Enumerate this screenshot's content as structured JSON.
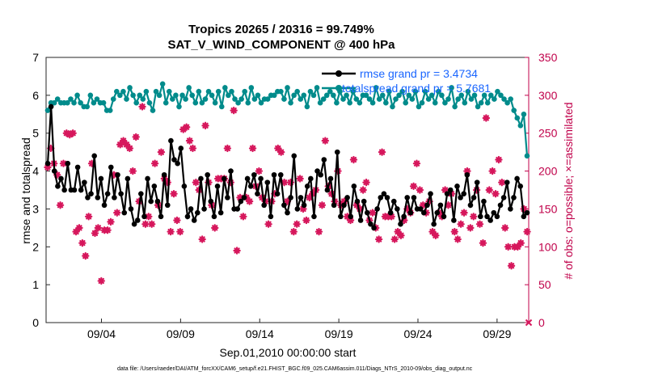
{
  "chart_data": {
    "type": "line",
    "title_line1": "Tropics 20265 / 20316 = 99.749%",
    "title_line2": "SAT_V_WIND_COMPONENT @ 400 hPa",
    "xlabel": "Sep.01,2010 00:00:00 start",
    "ylabel_left": "rmse and totalspread",
    "ylabel_right": "# of obs: o=possible; ×=assimilated",
    "footer": "data file: /Users/raeder/DAI/ATM_forcXX/CAM6_setup/f.e21.FHIST_BGC.f09_025.CAM6assim.011/Diags_NTrS_2010-09/obs_diag_output.nc",
    "xlim": [
      0.5,
      31.0
    ],
    "ylim_left": [
      0,
      7
    ],
    "ylim_right": [
      0,
      350
    ],
    "x_ticks": [
      {
        "value": 4,
        "label": "09/04"
      },
      {
        "value": 9,
        "label": "09/09"
      },
      {
        "value": 14,
        "label": "09/14"
      },
      {
        "value": 19,
        "label": "09/19"
      },
      {
        "value": 24,
        "label": "09/24"
      },
      {
        "value": 29,
        "label": "09/29"
      }
    ],
    "y_ticks_left": [
      "0",
      "1",
      "2",
      "3",
      "4",
      "5",
      "6",
      "7"
    ],
    "y_ticks_right": [
      "0",
      "50",
      "100",
      "150",
      "200",
      "250",
      "300",
      "350"
    ],
    "colors": {
      "rmse": "#000000",
      "spread": "#008b8b",
      "obs": "#d6175c",
      "right_axis": "#c0004a",
      "legend_text": "#1a66ff"
    },
    "series": [
      {
        "name": "rmse",
        "legend": "rmse grand pr = 3.4734",
        "values": [
          4.2,
          5.7,
          4.0,
          3.6,
          3.8,
          3.5,
          4.2,
          3.5,
          3.5,
          4.1,
          3.5,
          3.7,
          3.3,
          3.4,
          4.4,
          3.3,
          3.8,
          3.1,
          3.4,
          4.1,
          3.3,
          3.9,
          3.4,
          2.9,
          3.8,
          3.0,
          2.6,
          2.7,
          3.4,
          2.8,
          3.8,
          3.2,
          3.6,
          3.2,
          2.8,
          3.9,
          3.1,
          4.8,
          4.3,
          4.2,
          4.6,
          3.6,
          2.8,
          3.0,
          2.7,
          2.9,
          3.8,
          3.0,
          3.9,
          3.2,
          2.8,
          3.6,
          2.9,
          3.8,
          3.3,
          4.0,
          3.0,
          3.0,
          3.2,
          3.3,
          3.8,
          3.6,
          3.9,
          3.4,
          3.8,
          3.1,
          3.7,
          2.8,
          3.9,
          3.4,
          3.9,
          3.1,
          2.9,
          3.3,
          4.4,
          3.0,
          3.3,
          3.1,
          3.6,
          3.8,
          2.8,
          4.0,
          3.9,
          4.3,
          3.5,
          3.8,
          3.1,
          4.5,
          2.8,
          3.1,
          3.3,
          2.8,
          3.6,
          3.2,
          2.7,
          3.2,
          2.9,
          2.6,
          2.5,
          3.0,
          3.3,
          3.4,
          3.3,
          2.9,
          3.2,
          3.0,
          2.6,
          2.8,
          3.3,
          2.9,
          3.3,
          3.0,
          3.0,
          2.9,
          3.1,
          3.4,
          2.6,
          2.9,
          3.1,
          2.8,
          3.4,
          3.5,
          2.7,
          3.6,
          3.3,
          3.4,
          3.9,
          3.1,
          3.3,
          3.7,
          2.8,
          3.2,
          2.8,
          2.7,
          2.9,
          2.8,
          3.1,
          3.3,
          3.7,
          3.0,
          3.3,
          3.8,
          3.6,
          2.8,
          2.9
        ]
      },
      {
        "name": "totalspread",
        "legend": "totalspread grand pr = 5.7681",
        "values": [
          5.6,
          5.8,
          5.8,
          5.9,
          5.8,
          5.8,
          5.8,
          5.9,
          5.8,
          6.0,
          5.8,
          5.7,
          5.7,
          6.0,
          5.8,
          5.9,
          5.8,
          5.8,
          5.6,
          5.6,
          5.9,
          6.1,
          6.0,
          6.1,
          5.9,
          6.2,
          6.0,
          5.8,
          6.0,
          5.9,
          6.1,
          5.8,
          5.6,
          6.1,
          6.0,
          6.3,
          5.8,
          6.1,
          5.9,
          6.0,
          5.7,
          6.0,
          5.9,
          6.2,
          6.0,
          5.8,
          6.1,
          5.8,
          5.9,
          6.1,
          6.0,
          5.8,
          6.1,
          5.7,
          6.2,
          6.0,
          6.1,
          5.9,
          5.8,
          5.9,
          6.1,
          5.8,
          6.2,
          5.9,
          6.0,
          5.8,
          5.9,
          5.9,
          6.0,
          6.0,
          6.1,
          6.1,
          5.9,
          6.2,
          5.8,
          6.0,
          6.1,
          5.9,
          6.0,
          5.7,
          6.1,
          6.0,
          6.2,
          5.8,
          5.9,
          6.0,
          6.1,
          6.0,
          5.8,
          6.1,
          5.9,
          6.0,
          5.8,
          6.1,
          5.9,
          5.8,
          6.0,
          6.0,
          5.9,
          5.8,
          6.2,
          5.9,
          6.0,
          5.8,
          6.1,
          5.7,
          5.9,
          6.0,
          6.1,
          5.8,
          6.0,
          5.9,
          6.1,
          5.7,
          5.8,
          6.1,
          5.9,
          6.0,
          5.8,
          6.1,
          6.0,
          5.8,
          5.9,
          6.2,
          5.7,
          5.9,
          6.0,
          5.8,
          6.1,
          5.9,
          6.0,
          5.7,
          5.8,
          6.0,
          5.8,
          6.0,
          5.9,
          6.1,
          6.0,
          5.9,
          5.8,
          5.9,
          5.6,
          5.4,
          5.2,
          5.5,
          4.4
        ]
      },
      {
        "name": "obs_assimilated",
        "axis": "right",
        "values": [
          205,
          230,
          210,
          195,
          155,
          210,
          250,
          248,
          250,
          120,
          125,
          105,
          88,
          140,
          210,
          118,
          125,
          55,
          122,
          122,
          133,
          195,
          145,
          235,
          240,
          235,
          230,
          200,
          245,
          160,
          285,
          130,
          140,
          130,
          210,
          155,
          225,
          190,
          185,
          120,
          170,
          135,
          120,
          255,
          258,
          240,
          230,
          185,
          175,
          110,
          260,
          185,
          155,
          125,
          190,
          190,
          190,
          230,
          185,
          280,
          95,
          165,
          140,
          165,
          160,
          230,
          180,
          200,
          165,
          160,
          130,
          160,
          170,
          230,
          225,
          185,
          160,
          185,
          120,
          130,
          190,
          150,
          135,
          165,
          170,
          175,
          120,
          155,
          240,
          180,
          170,
          160,
          200,
          155,
          160,
          140,
          135,
          215,
          155,
          150,
          175,
          185,
          135,
          145,
          125,
          110,
          225,
          140,
          140,
          140,
          110,
          120,
          115,
          135,
          150,
          145,
          180,
          210,
          175,
          155,
          145,
          160,
          120,
          115,
          145,
          140,
          175,
          155,
          170,
          120,
          110,
          130,
          145,
          200,
          125,
          140,
          175,
          130,
          105,
          270,
          175,
          200,
          170,
          215,
          185,
          125,
          100,
          75,
          100,
          100,
          105,
          150,
          120
        ]
      }
    ]
  }
}
